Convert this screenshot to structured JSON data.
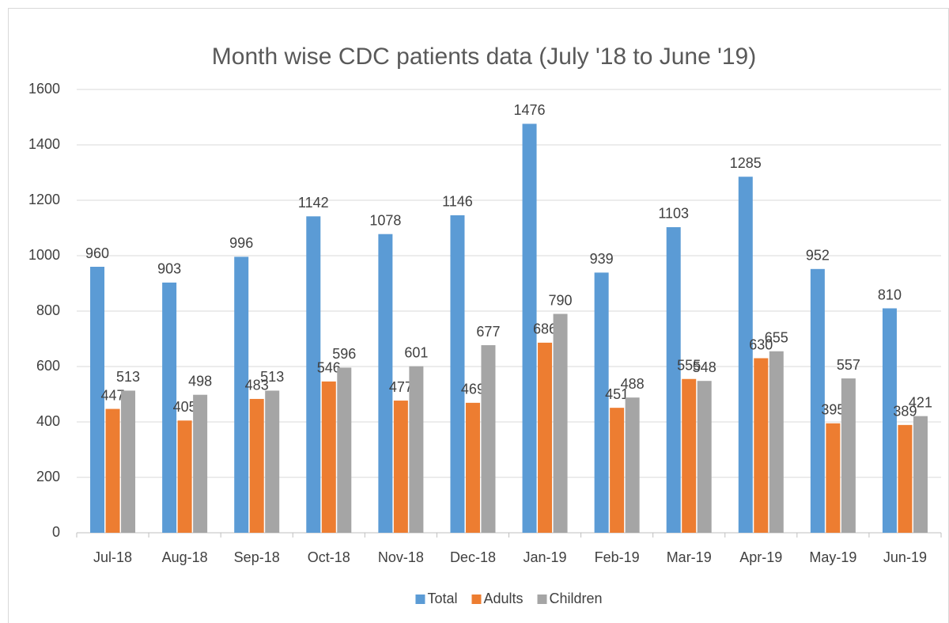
{
  "chart_data": {
    "type": "bar",
    "title": "Month wise CDC patients data (July '18 to June '19)",
    "categories": [
      "Jul-18",
      "Aug-18",
      "Sep-18",
      "Oct-18",
      "Nov-18",
      "Dec-18",
      "Jan-19",
      "Feb-19",
      "Mar-19",
      "Apr-19",
      "May-19",
      "Jun-19"
    ],
    "series": [
      {
        "name": "Total",
        "color": "#5b9bd5",
        "values": [
          960,
          903,
          996,
          1142,
          1078,
          1146,
          1476,
          939,
          1103,
          1285,
          952,
          810
        ]
      },
      {
        "name": "Adults",
        "color": "#ed7d31",
        "values": [
          447,
          405,
          483,
          546,
          477,
          469,
          686,
          451,
          555,
          630,
          395,
          389
        ]
      },
      {
        "name": "Children",
        "color": "#a5a5a5",
        "values": [
          513,
          498,
          513,
          596,
          601,
          677,
          790,
          488,
          548,
          655,
          557,
          421
        ]
      }
    ],
    "ylim": [
      0,
      1600
    ],
    "yticks": [
      0,
      200,
      400,
      600,
      800,
      1000,
      1200,
      1400,
      1600
    ],
    "grid": true,
    "legend": "bottom"
  }
}
